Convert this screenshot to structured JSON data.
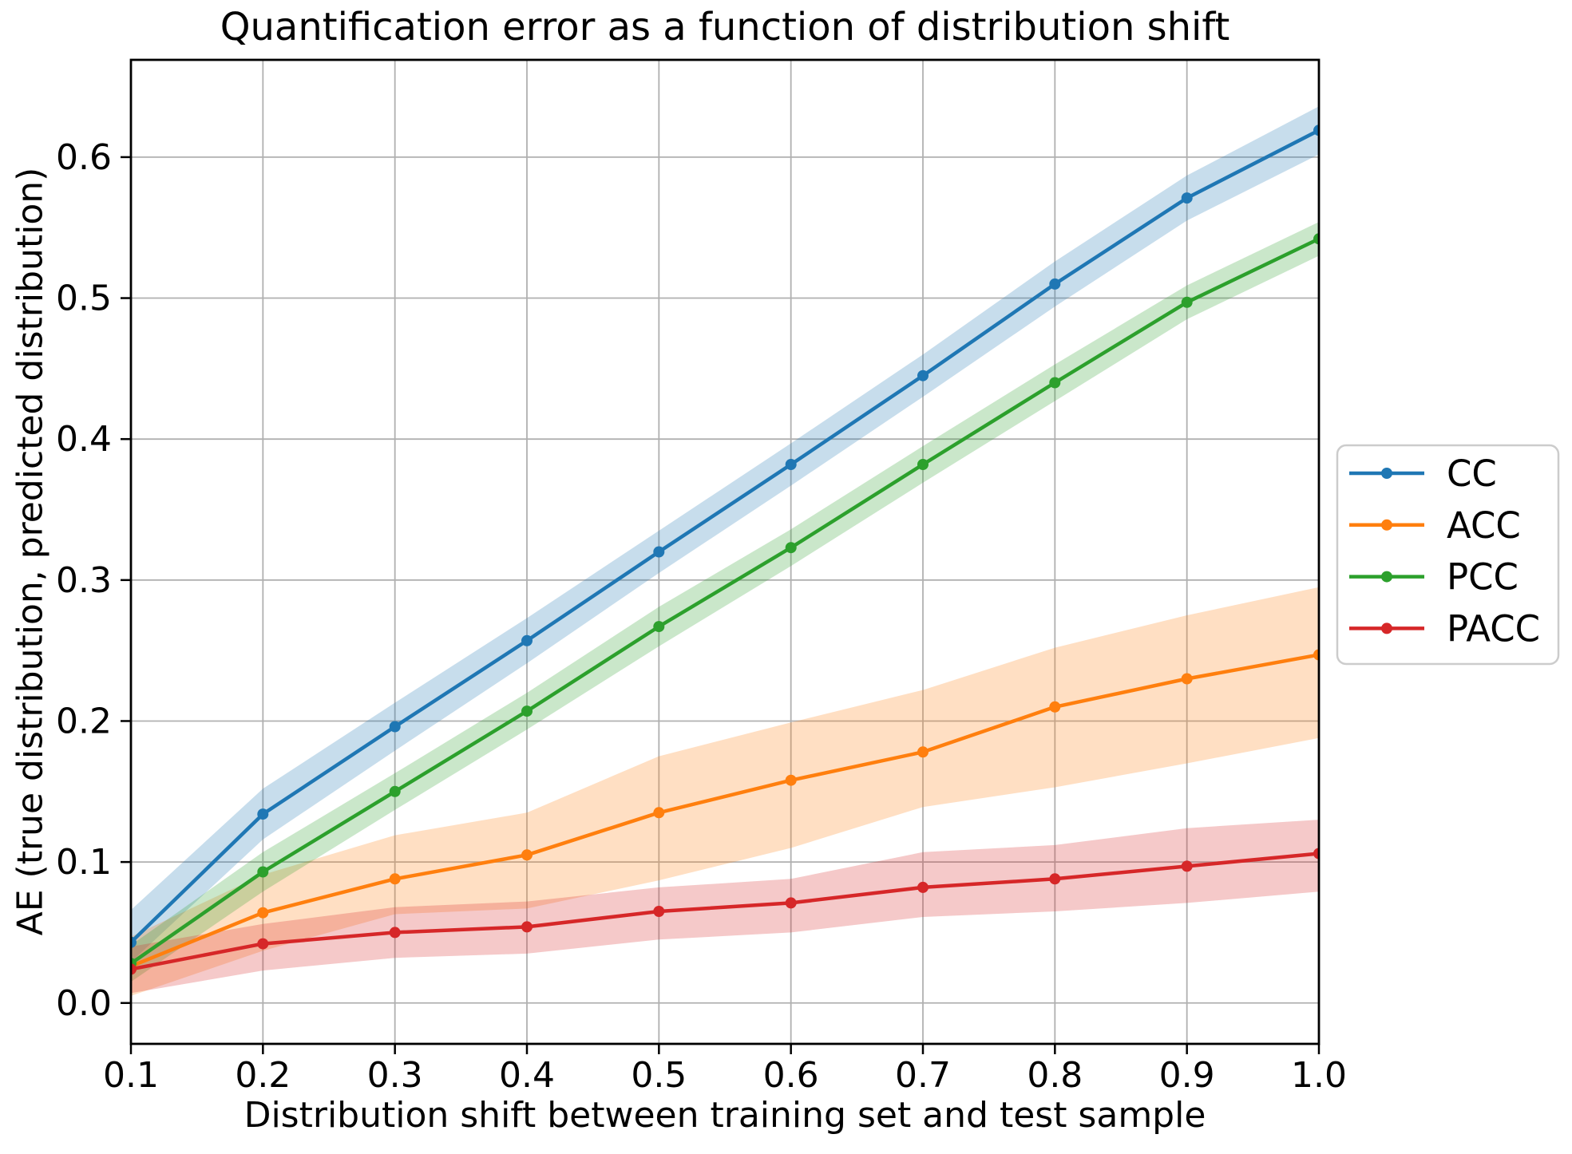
{
  "figure": {
    "title": "Quantification error as a function of distribution shift",
    "xlabel": "Distribution shift between training set and test sample",
    "ylabel": "AE (true distribution, predicted distribution)"
  },
  "chart_data": {
    "type": "line",
    "title": "Quantification error as a function of distribution shift",
    "xlabel": "Distribution shift between training set and test sample",
    "ylabel": "AE (true distribution, predicted distribution)",
    "x": [
      0.1,
      0.2,
      0.3,
      0.4,
      0.5,
      0.6,
      0.7,
      0.8,
      0.9,
      1.0
    ],
    "x_tick_labels": [
      "0.1",
      "0.2",
      "0.3",
      "0.4",
      "0.5",
      "0.6",
      "0.7",
      "0.8",
      "0.9",
      "1.0"
    ],
    "y_tick_values": [
      0.0,
      0.1,
      0.2,
      0.3,
      0.4,
      0.5,
      0.6
    ],
    "y_tick_labels": [
      "0.0",
      "0.1",
      "0.2",
      "0.3",
      "0.4",
      "0.5",
      "0.6"
    ],
    "xlim": [
      0.1,
      1.0
    ],
    "ylim": [
      -0.029,
      0.669
    ],
    "grid": true,
    "grid_color": "#b0b0b0",
    "spine_color": "#000000",
    "background_color": "#ffffff",
    "band_opacity": 0.25,
    "legend_position": "outside-right",
    "series": [
      {
        "name": "CC",
        "color": "#1f77b4",
        "values": [
          0.043,
          0.134,
          0.196,
          0.257,
          0.32,
          0.382,
          0.445,
          0.51,
          0.571,
          0.619
        ],
        "band_lower": [
          0.029,
          0.116,
          0.179,
          0.241,
          0.305,
          0.367,
          0.43,
          0.494,
          0.555,
          0.602
        ],
        "band_upper": [
          0.066,
          0.152,
          0.213,
          0.273,
          0.335,
          0.397,
          0.46,
          0.526,
          0.587,
          0.636
        ]
      },
      {
        "name": "ACC",
        "color": "#ff7f0e",
        "values": [
          0.026,
          0.064,
          0.088,
          0.105,
          0.135,
          0.158,
          0.178,
          0.21,
          0.23,
          0.247
        ],
        "band_lower": [
          0.005,
          0.037,
          0.063,
          0.067,
          0.087,
          0.11,
          0.139,
          0.153,
          0.17,
          0.188
        ],
        "band_upper": [
          0.047,
          0.091,
          0.119,
          0.135,
          0.175,
          0.199,
          0.222,
          0.252,
          0.275,
          0.295
        ]
      },
      {
        "name": "PCC",
        "color": "#2ca02c",
        "values": [
          0.028,
          0.093,
          0.15,
          0.207,
          0.267,
          0.323,
          0.382,
          0.44,
          0.497,
          0.542
        ],
        "band_lower": [
          0.015,
          0.079,
          0.137,
          0.194,
          0.253,
          0.31,
          0.369,
          0.427,
          0.485,
          0.53
        ],
        "band_upper": [
          0.041,
          0.107,
          0.163,
          0.22,
          0.281,
          0.336,
          0.395,
          0.453,
          0.509,
          0.554
        ]
      },
      {
        "name": "PACC",
        "color": "#d62728",
        "values": [
          0.024,
          0.042,
          0.05,
          0.054,
          0.065,
          0.071,
          0.082,
          0.088,
          0.097,
          0.106
        ],
        "band_lower": [
          0.007,
          0.023,
          0.032,
          0.035,
          0.045,
          0.05,
          0.061,
          0.065,
          0.071,
          0.079
        ],
        "band_upper": [
          0.04,
          0.056,
          0.068,
          0.072,
          0.082,
          0.088,
          0.107,
          0.112,
          0.124,
          0.13
        ]
      }
    ]
  }
}
